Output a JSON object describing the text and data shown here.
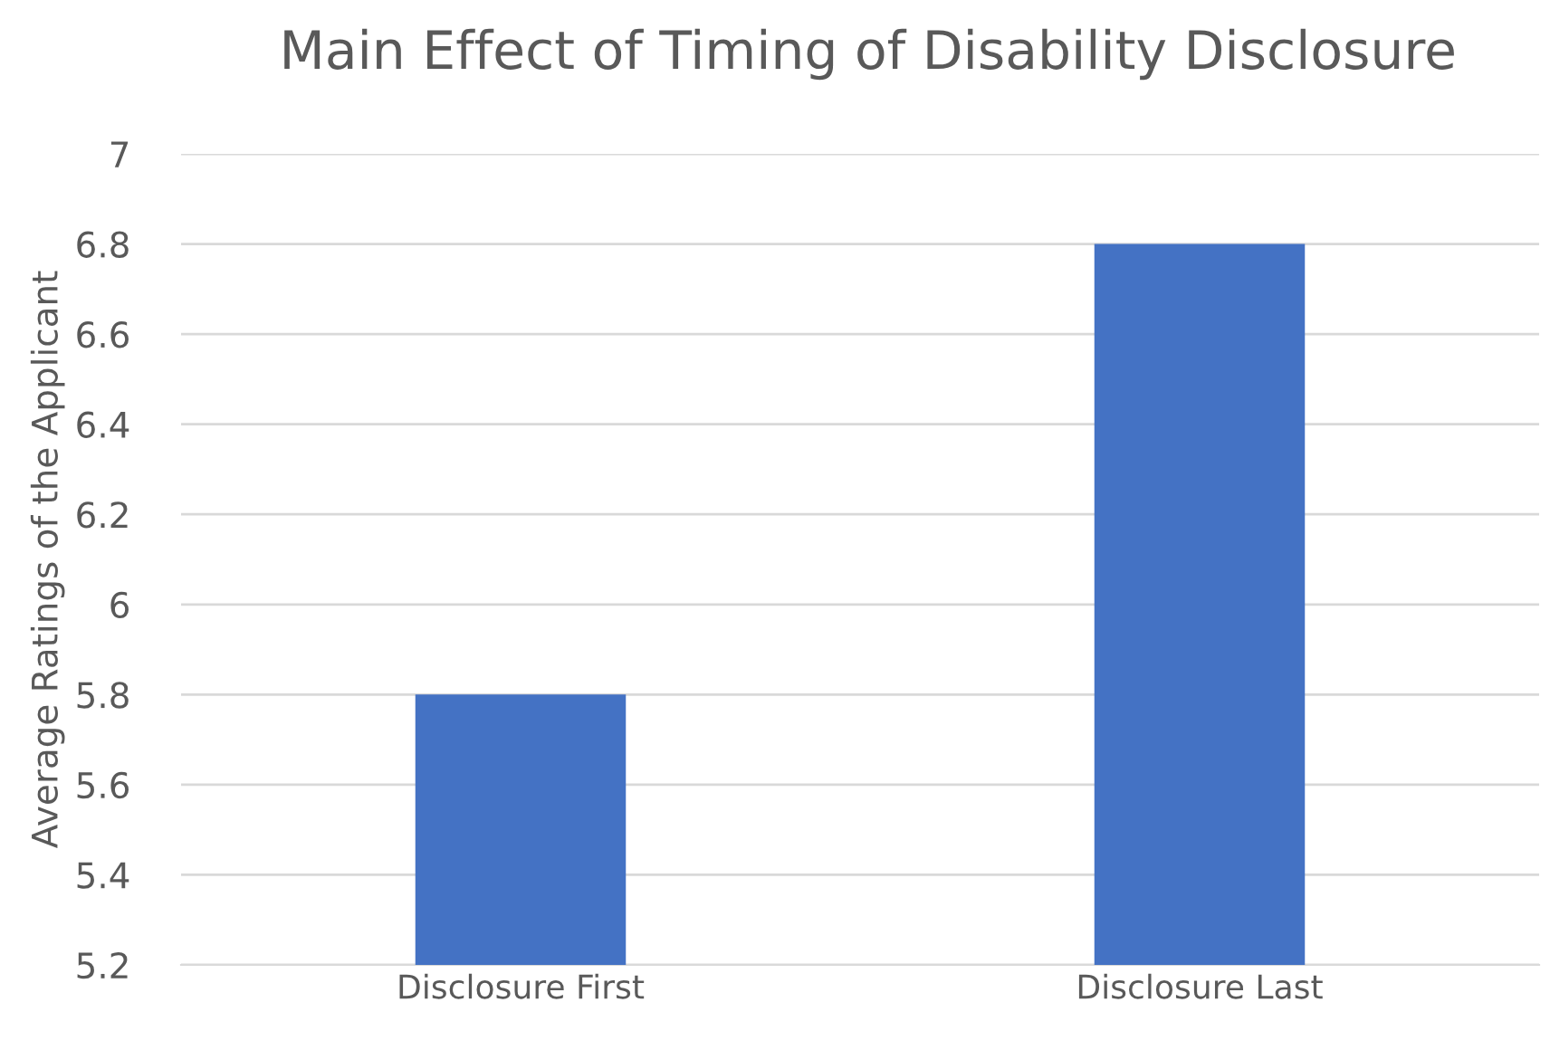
{
  "chart_data": {
    "type": "bar",
    "title": "Main Effect of Timing of Disability Disclosure",
    "ylabel": "Average Ratings of the Applicant",
    "categories": [
      "Disclosure First",
      "Disclosure Last"
    ],
    "values": [
      5.8,
      6.8
    ],
    "color": "#4472c4",
    "ylim": [
      5.2,
      7
    ],
    "yticks": [
      5.2,
      5.4,
      5.6,
      5.8,
      6,
      6.2,
      6.4,
      6.6,
      6.8,
      7
    ],
    "grid": "y",
    "legend": false
  }
}
